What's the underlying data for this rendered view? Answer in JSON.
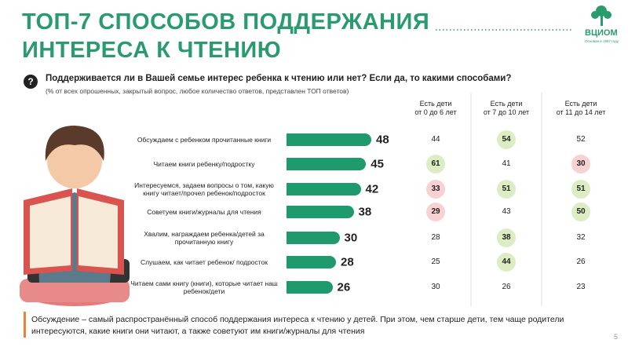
{
  "header": {
    "title": [
      "ТОП-7 СПОСОБОВ ПОДДЕРЖАНИЯ",
      "ИНТЕРЕСА К ЧТЕНИЮ"
    ],
    "logo": "ВЦИОМ",
    "logo_sub": "Основан в 1987 году"
  },
  "question": {
    "text": "Поддерживается ли в Вашей семье интерес ребенка к чтению или нет? Если да, то какими способами?",
    "note": "(% от всех опрошенных, закрытый вопрос, любое количество ответов, представлен ТОП ответов)"
  },
  "chart_data": {
    "type": "bar",
    "orientation": "horizontal",
    "color": "#1e9a6c",
    "categories": [
      "Обсуждаем с ребенком прочитанные книги",
      "Читаем книги ребенку/подростку",
      "Интересуемся, задаем вопросы о том, какую книгу читает/прочел ребенок/подросток",
      "Советуем книги/журналы для чтения",
      "Хвалим, награждаем ребенка/детей за прочитанную книгу",
      "Слушаем, как читает ребенок/ подросток",
      "Читаем сами книгу (книги), которые читает наш ребенок/дети"
    ],
    "values": [
      48,
      45,
      42,
      38,
      30,
      28,
      26
    ]
  },
  "table": {
    "columns": [
      [
        "Есть дети",
        "от 0 до 6 лет"
      ],
      [
        "Есть дети",
        "от 7 до 10 лет"
      ],
      [
        "Есть дети",
        "от 11 до 14 лет"
      ]
    ],
    "rows": [
      [
        44,
        54,
        52
      ],
      [
        61,
        41,
        30
      ],
      [
        33,
        51,
        51
      ],
      [
        29,
        43,
        50
      ],
      [
        28,
        38,
        32
      ],
      [
        25,
        44,
        26
      ],
      [
        30,
        26,
        23
      ]
    ],
    "highlight_colors": {
      "up": "#dcedc4",
      "down": "#f8d2d2"
    },
    "highlight": [
      [
        null,
        "up",
        null
      ],
      [
        "up",
        null,
        "down"
      ],
      [
        "down",
        "up",
        "up"
      ],
      [
        "down",
        null,
        "up"
      ],
      [
        null,
        "up",
        null
      ],
      [
        null,
        "up",
        null
      ],
      [
        null,
        null,
        null
      ]
    ]
  },
  "footer": {
    "text": "Обсуждение – самый распространённый способ поддержания интереса к чтению у детей. При этом, чем старше дети, тем чаще родители интересуются, какие книги они читают, а также советуют им книги/журналы для чтения",
    "page": "5"
  }
}
